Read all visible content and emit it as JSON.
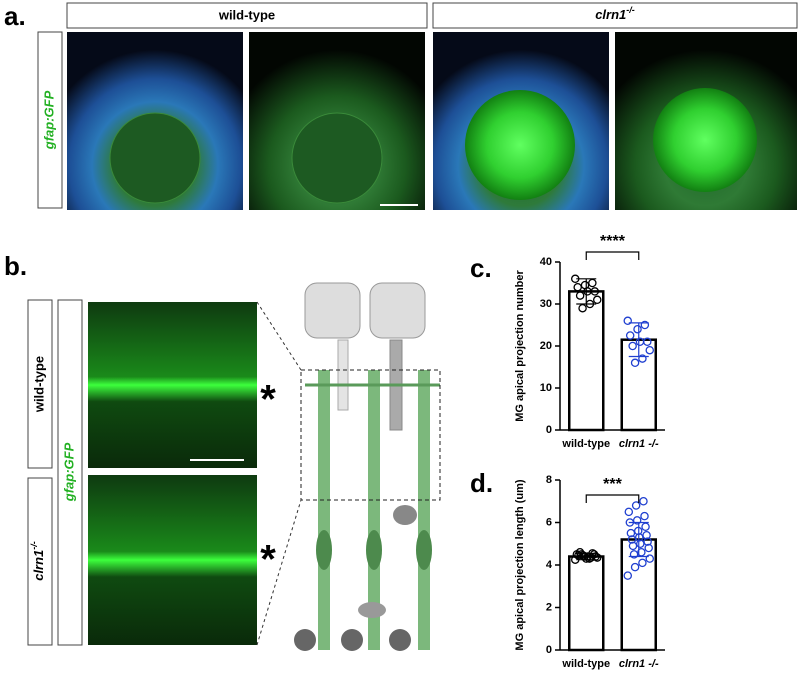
{
  "panel_labels": [
    "a.",
    "b.",
    "c.",
    "d."
  ],
  "genotypes": {
    "wild_type": "wild-type",
    "mutant": "clrn1",
    "mutant_sup": "-/-"
  },
  "reporter": "gfap:GFP",
  "asterisk": "*",
  "chart_data": [
    {
      "type": "bar",
      "ylabel": "MG apical projection number",
      "categories": [
        "wild-type",
        "clrn1 -/-"
      ],
      "values": [
        33,
        21.5
      ],
      "errors": [
        3,
        4
      ],
      "colors": [
        "#000000",
        "#1f3fd0"
      ],
      "points": [
        [
          36,
          35,
          34.5,
          34,
          33,
          33,
          32,
          31,
          30,
          29
        ],
        [
          26,
          25,
          24,
          22.5,
          21,
          21,
          20,
          19,
          17,
          16
        ]
      ],
      "significance": "****",
      "ylim": [
        0,
        40
      ],
      "yticks": [
        0,
        10,
        20,
        30,
        40
      ]
    },
    {
      "type": "bar",
      "ylabel": "MG apical projection length (um)",
      "categories": [
        "wild-type",
        "clrn1 -/-"
      ],
      "values": [
        4.4,
        5.2
      ],
      "errors": [
        0.15,
        0.8
      ],
      "colors": [
        "#000000",
        "#1f3fd0"
      ],
      "points": [
        [
          4.25,
          4.3,
          4.35,
          4.4,
          4.4,
          4.45,
          4.5,
          4.5,
          4.55,
          4.6,
          4.35,
          4.45,
          4.3,
          4.5,
          4.4
        ],
        [
          3.5,
          3.9,
          4.1,
          4.3,
          4.5,
          4.6,
          4.8,
          4.9,
          5.0,
          5.1,
          5.2,
          5.3,
          5.4,
          5.5,
          5.6,
          5.8,
          6.0,
          6.1,
          6.3,
          6.5,
          6.8,
          7.0
        ]
      ],
      "significance": "***",
      "ylim": [
        0,
        8
      ],
      "yticks": [
        0,
        2,
        4,
        6,
        8
      ]
    }
  ]
}
